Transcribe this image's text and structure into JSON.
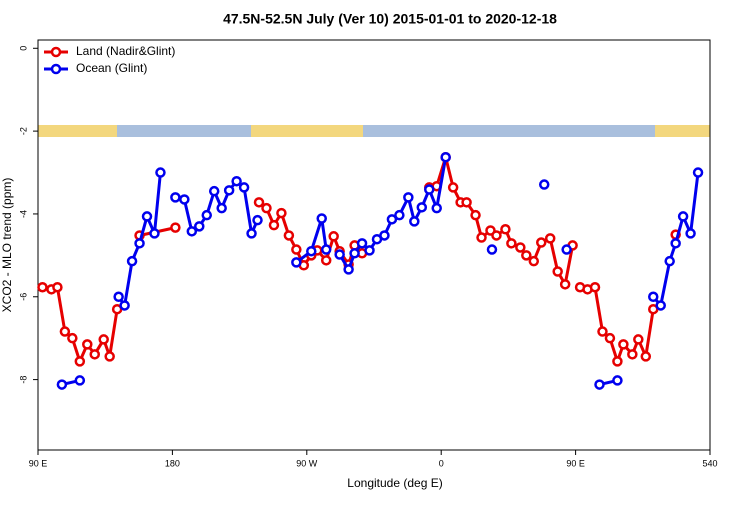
{
  "chart_data": {
    "type": "line",
    "title": "47.5N-52.5N July (Ver 10)   2015-01-01 to 2020-12-18",
    "xlabel": "Longitude (deg E)",
    "ylabel": "XCO2 - MLO trend (ppm)",
    "xlim": [
      90,
      540
    ],
    "xticks": [
      {
        "value": 90,
        "label": "90 E"
      },
      180,
      {
        "value": 270,
        "label": "90 W"
      },
      {
        "value": 360,
        "label": "0"
      },
      {
        "value": 450,
        "label": "90 E"
      },
      540
    ],
    "ylim": [
      -9.7,
      0.2
    ],
    "yticks": [
      0,
      -2,
      -4,
      -6,
      -8
    ],
    "legend": "top-left",
    "series": [
      {
        "name": "Land (Nadir&Glint)",
        "color": "#e60000",
        "x": [
          93,
          99,
          103,
          108,
          113,
          118,
          123,
          128,
          134,
          138,
          143,
          null,
          158,
          182,
          null,
          238,
          243,
          248,
          253,
          258,
          263,
          268,
          273,
          277,
          283,
          288,
          292,
          298,
          302,
          307,
          null,
          352,
          357,
          363,
          368,
          373,
          377,
          383,
          387,
          393,
          397,
          403,
          407,
          413,
          417,
          422,
          427,
          433,
          438,
          443,
          448,
          null,
          453,
          458,
          463,
          468,
          473,
          478,
          482,
          488,
          492,
          497,
          502,
          null,
          517
        ],
        "values": [
          -5.77,
          -5.82,
          -5.77,
          -6.84,
          -7.0,
          -7.56,
          -7.15,
          -7.39,
          -7.03,
          -7.44,
          -6.3,
          null,
          -4.52,
          -4.33,
          null,
          -3.72,
          -3.86,
          -4.27,
          -3.98,
          -4.52,
          -4.86,
          -5.24,
          -5.0,
          -4.88,
          -5.12,
          -4.54,
          -4.9,
          -5.22,
          -4.76,
          -4.95,
          null,
          -3.36,
          -3.33,
          -2.63,
          -3.36,
          -3.72,
          -3.72,
          -4.03,
          -4.57,
          -4.4,
          -4.52,
          -4.37,
          -4.71,
          -4.81,
          -5.0,
          -5.14,
          -4.69,
          -4.59,
          -5.39,
          -5.7,
          -4.76,
          null,
          -5.77,
          -5.82,
          -5.77,
          -6.84,
          -7.0,
          -7.56,
          -7.15,
          -7.39,
          -7.03,
          -7.44,
          -6.3,
          null,
          -4.5
        ]
      },
      {
        "name": "Ocean (Glint)",
        "color": "#0000ee",
        "x": [
          106,
          118,
          null,
          144,
          148,
          153,
          158,
          163,
          168,
          172,
          null,
          182,
          188,
          193,
          198,
          203,
          208,
          213,
          218,
          223,
          228,
          233,
          237,
          null,
          263,
          273,
          280,
          283,
          null,
          292,
          298,
          302,
          307,
          312,
          317,
          322,
          327,
          332,
          338,
          342,
          347,
          352,
          357,
          363,
          null,
          394,
          null,
          429,
          null,
          444,
          null,
          466,
          478,
          null,
          502,
          507,
          513,
          517,
          522,
          527,
          532
        ],
        "values": [
          -8.12,
          -8.02,
          null,
          -6.0,
          -6.21,
          -5.14,
          -4.71,
          -4.06,
          -4.47,
          -3.0,
          null,
          -3.6,
          -3.65,
          -4.42,
          -4.3,
          -4.03,
          -3.45,
          -3.86,
          -3.43,
          -3.21,
          -3.36,
          -4.47,
          -4.15,
          null,
          -5.17,
          -4.9,
          -4.11,
          -4.86,
          null,
          -4.98,
          -5.34,
          -4.95,
          -4.71,
          -4.88,
          -4.61,
          -4.52,
          -4.13,
          -4.03,
          -3.6,
          -4.18,
          -3.84,
          -3.41,
          -3.86,
          -2.63,
          null,
          -4.86,
          null,
          -3.29,
          null,
          -4.86,
          null,
          -8.12,
          -8.02,
          null,
          -6.0,
          -6.21,
          -5.14,
          -4.71,
          -4.06,
          -4.47,
          -3.0
        ]
      }
    ]
  }
}
